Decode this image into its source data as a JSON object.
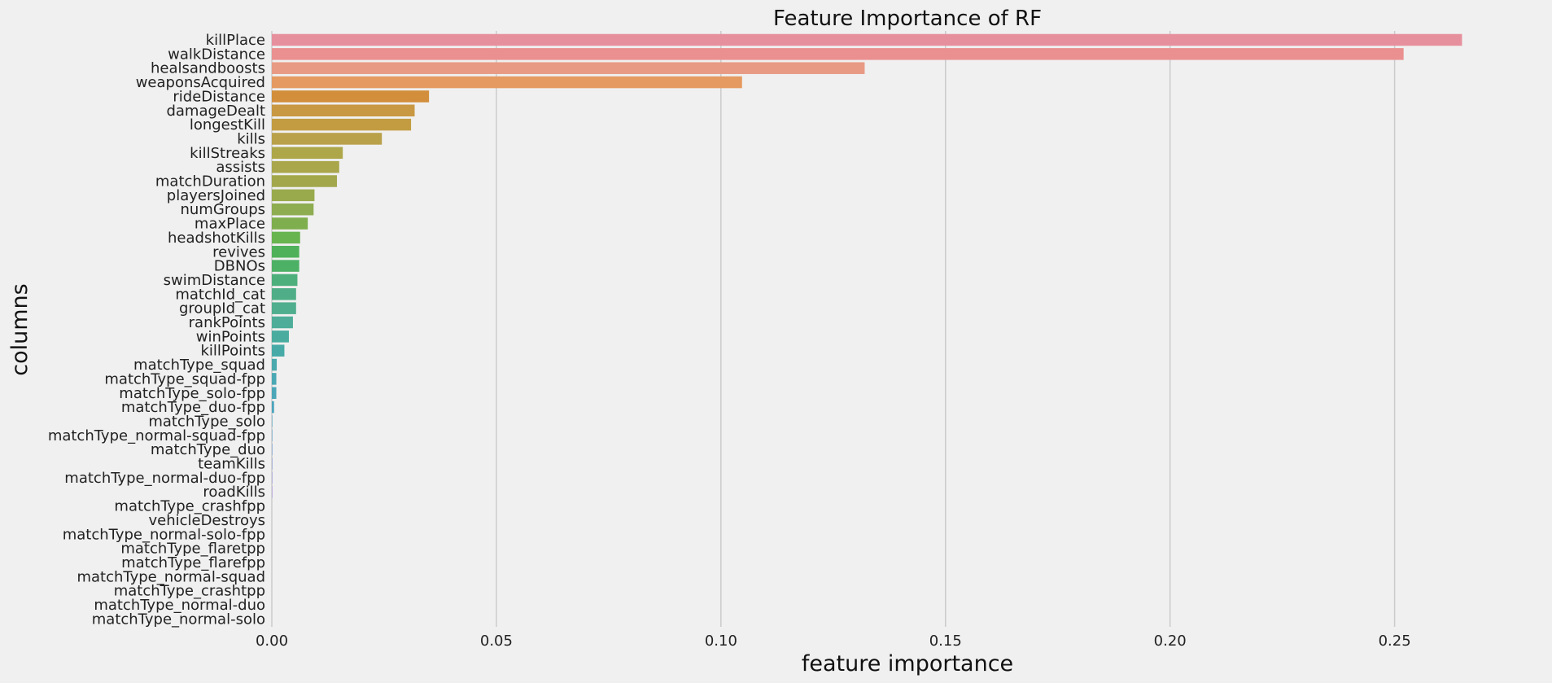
{
  "chart_data": {
    "type": "bar",
    "orientation": "horizontal",
    "title": "Feature Importance of RF",
    "xlabel": "feature importance",
    "ylabel": "columns",
    "xlim": [
      0,
      0.27
    ],
    "xticks": [
      0.0,
      0.05,
      0.1,
      0.15,
      0.2,
      0.25
    ],
    "xtick_labels": [
      "0.00",
      "0.05",
      "0.10",
      "0.15",
      "0.20",
      "0.25"
    ],
    "grid": "vertical",
    "categories": [
      "killPlace",
      "walkDistance",
      "healsandboosts",
      "weaponsAcquired",
      "rideDistance",
      "damageDealt",
      "longestKill",
      "kills",
      "killStreaks",
      "assists",
      "matchDuration",
      "playersJoined",
      "numGroups",
      "maxPlace",
      "headshotKills",
      "revives",
      "DBNOs",
      "swimDistance",
      "matchId_cat",
      "groupId_cat",
      "rankPoints",
      "winPoints",
      "killPoints",
      "matchType_squad",
      "matchType_squad-fpp",
      "matchType_solo-fpp",
      "matchType_duo-fpp",
      "matchType_solo",
      "matchType_normal-squad-fpp",
      "matchType_duo",
      "teamKills",
      "matchType_normal-duo-fpp",
      "roadKills",
      "matchType_crashfpp",
      "vehicleDestroys",
      "matchType_normal-solo-fpp",
      "matchType_flaretpp",
      "matchType_flarefpp",
      "matchType_normal-squad",
      "matchType_crashtpp",
      "matchType_normal-duo",
      "matchType_normal-solo"
    ],
    "values": [
      0.265,
      0.252,
      0.132,
      0.1047,
      0.035,
      0.0318,
      0.031,
      0.0245,
      0.0158,
      0.015,
      0.0145,
      0.0095,
      0.0093,
      0.008,
      0.0063,
      0.0061,
      0.0061,
      0.0057,
      0.0054,
      0.0054,
      0.0047,
      0.0038,
      0.0028,
      0.0011,
      0.001,
      0.001,
      0.0005,
      0.0001,
      0.0001,
      0.0001,
      0.0001,
      0.0001,
      0.0001,
      0.0,
      0.0,
      0.0,
      0.0,
      0.0,
      0.0,
      0.0,
      0.0,
      0.0
    ],
    "colors": [
      "#e7909d",
      "#ea9090",
      "#e89a84",
      "#e49a61",
      "#d28e3b",
      "#c99842",
      "#c39c42",
      "#b9a14a",
      "#ada74a",
      "#a9a64b",
      "#a2a74c",
      "#98aa4c",
      "#8eac50",
      "#7fae4e",
      "#68b44f",
      "#4fb159",
      "#4db165",
      "#4daf7c",
      "#4fae87",
      "#4fae8e",
      "#4dad98",
      "#4aac9f",
      "#47aaa6",
      "#4aa9ad",
      "#48a8b3",
      "#4aa6b8",
      "#4ca5bd",
      "#50a3c3",
      "#589fcb",
      "#6a9bd3",
      "#7f97d9",
      "#9490dd",
      "#a78ae0",
      "#b887e0",
      "#c586dc",
      "#d184d7",
      "#dc84cd",
      "#e288c1",
      "#e689b4",
      "#e78aa9",
      "#e98ca2",
      "#e98d99"
    ]
  }
}
